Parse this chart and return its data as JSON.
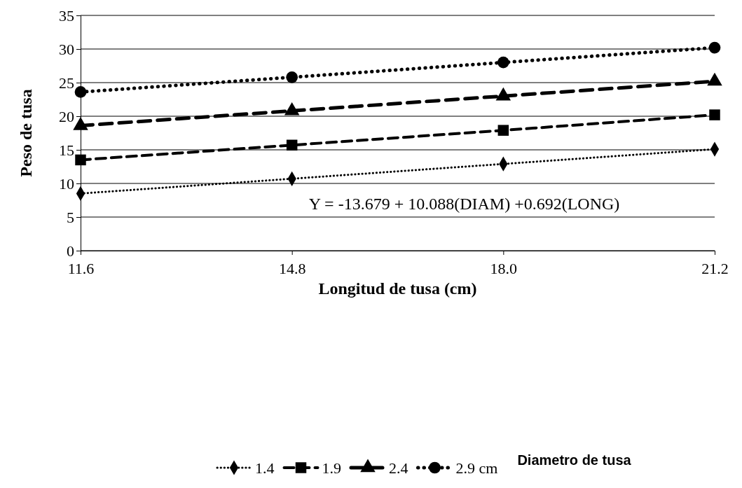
{
  "chart_data": {
    "type": "line",
    "xlabel": "Longitud de tusa (cm)",
    "ylabel": "Peso de tusa",
    "x": [
      11.6,
      14.8,
      18.0,
      21.2
    ],
    "xlim": [
      11.6,
      21.2
    ],
    "xticks": [
      11.6,
      14.8,
      {
        "value": 18,
        "label": "18.0"
      },
      21.2
    ],
    "ylim": [
      0,
      35
    ],
    "yticks": [
      0,
      5,
      10,
      15,
      20,
      25,
      30,
      35
    ],
    "grid": "y",
    "legend": "bottom",
    "legend_title": "Diametro de tusa",
    "annotations": [
      "Y = -13.679 + 10.088(DIAM) +0.692(LONG)"
    ],
    "series": [
      {
        "name": "1.4",
        "color": "#000000",
        "marker": "diamond",
        "line_style": "dotted",
        "values": [
          8.5,
          10.7,
          12.9,
          15.1
        ]
      },
      {
        "name": "1.9",
        "color": "#000000",
        "marker": "square",
        "line_style": "dashed",
        "values": [
          13.5,
          15.7,
          17.9,
          20.2
        ]
      },
      {
        "name": "2.4",
        "color": "#000000",
        "marker": "triangle",
        "line_style": "dashed",
        "values": [
          18.6,
          20.8,
          23.0,
          25.2
        ]
      },
      {
        "name": "2.9 cm",
        "color": "#000000",
        "marker": "circle",
        "line_style": "dotted",
        "values": [
          23.6,
          25.8,
          28.0,
          30.2
        ]
      }
    ]
  }
}
